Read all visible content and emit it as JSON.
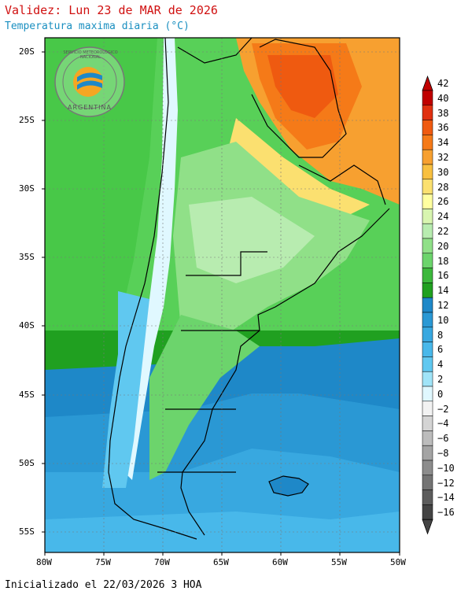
{
  "header": {
    "title": "Validez: Lun 23 de MAR de 2026",
    "subtitle": "Temperatura maxima diaria (°C)"
  },
  "footer": {
    "init": "Inicializado el 22/03/2026 3 HOA"
  },
  "logo": {
    "text_top": "SERVICIO METEOROLÓGICO NACIONAL",
    "text_bottom": "ARGENTINA",
    "icon": "smn-logo"
  },
  "map": {
    "lat_labels": [
      "20S",
      "25S",
      "30S",
      "35S",
      "40S",
      "45S",
      "50S",
      "55S"
    ],
    "lon_labels": [
      "80W",
      "75W",
      "70W",
      "65W",
      "60W",
      "55W",
      "50W"
    ]
  },
  "colorbar": {
    "labels": [
      "42",
      "40",
      "38",
      "36",
      "34",
      "32",
      "30",
      "28",
      "26",
      "24",
      "22",
      "20",
      "18",
      "16",
      "14",
      "12",
      "10",
      "8",
      "6",
      "4",
      "2",
      "0",
      "−2",
      "−4",
      "−6",
      "−8",
      "−10",
      "−12",
      "−14",
      "−16"
    ],
    "colors": [
      "#c00000",
      "#e03010",
      "#ef5a10",
      "#f57a18",
      "#f7a030",
      "#f8c040",
      "#fbe070",
      "#ffffa0",
      "#d8f5b0",
      "#b8ecb0",
      "#90e088",
      "#6cd46c",
      "#3cb83c",
      "#20a020",
      "#1e88c8",
      "#2a98d4",
      "#38a8e0",
      "#48b8ea",
      "#60c8f0",
      "#a0e4f8",
      "#e0f8ff",
      "#f2f2f2",
      "#d4d4d4",
      "#bcbcbc",
      "#a4a4a4",
      "#8c8c8c",
      "#747474",
      "#5c5c5c",
      "#444444"
    ],
    "top_color": "#c00000",
    "bottom_color": "#444444"
  }
}
